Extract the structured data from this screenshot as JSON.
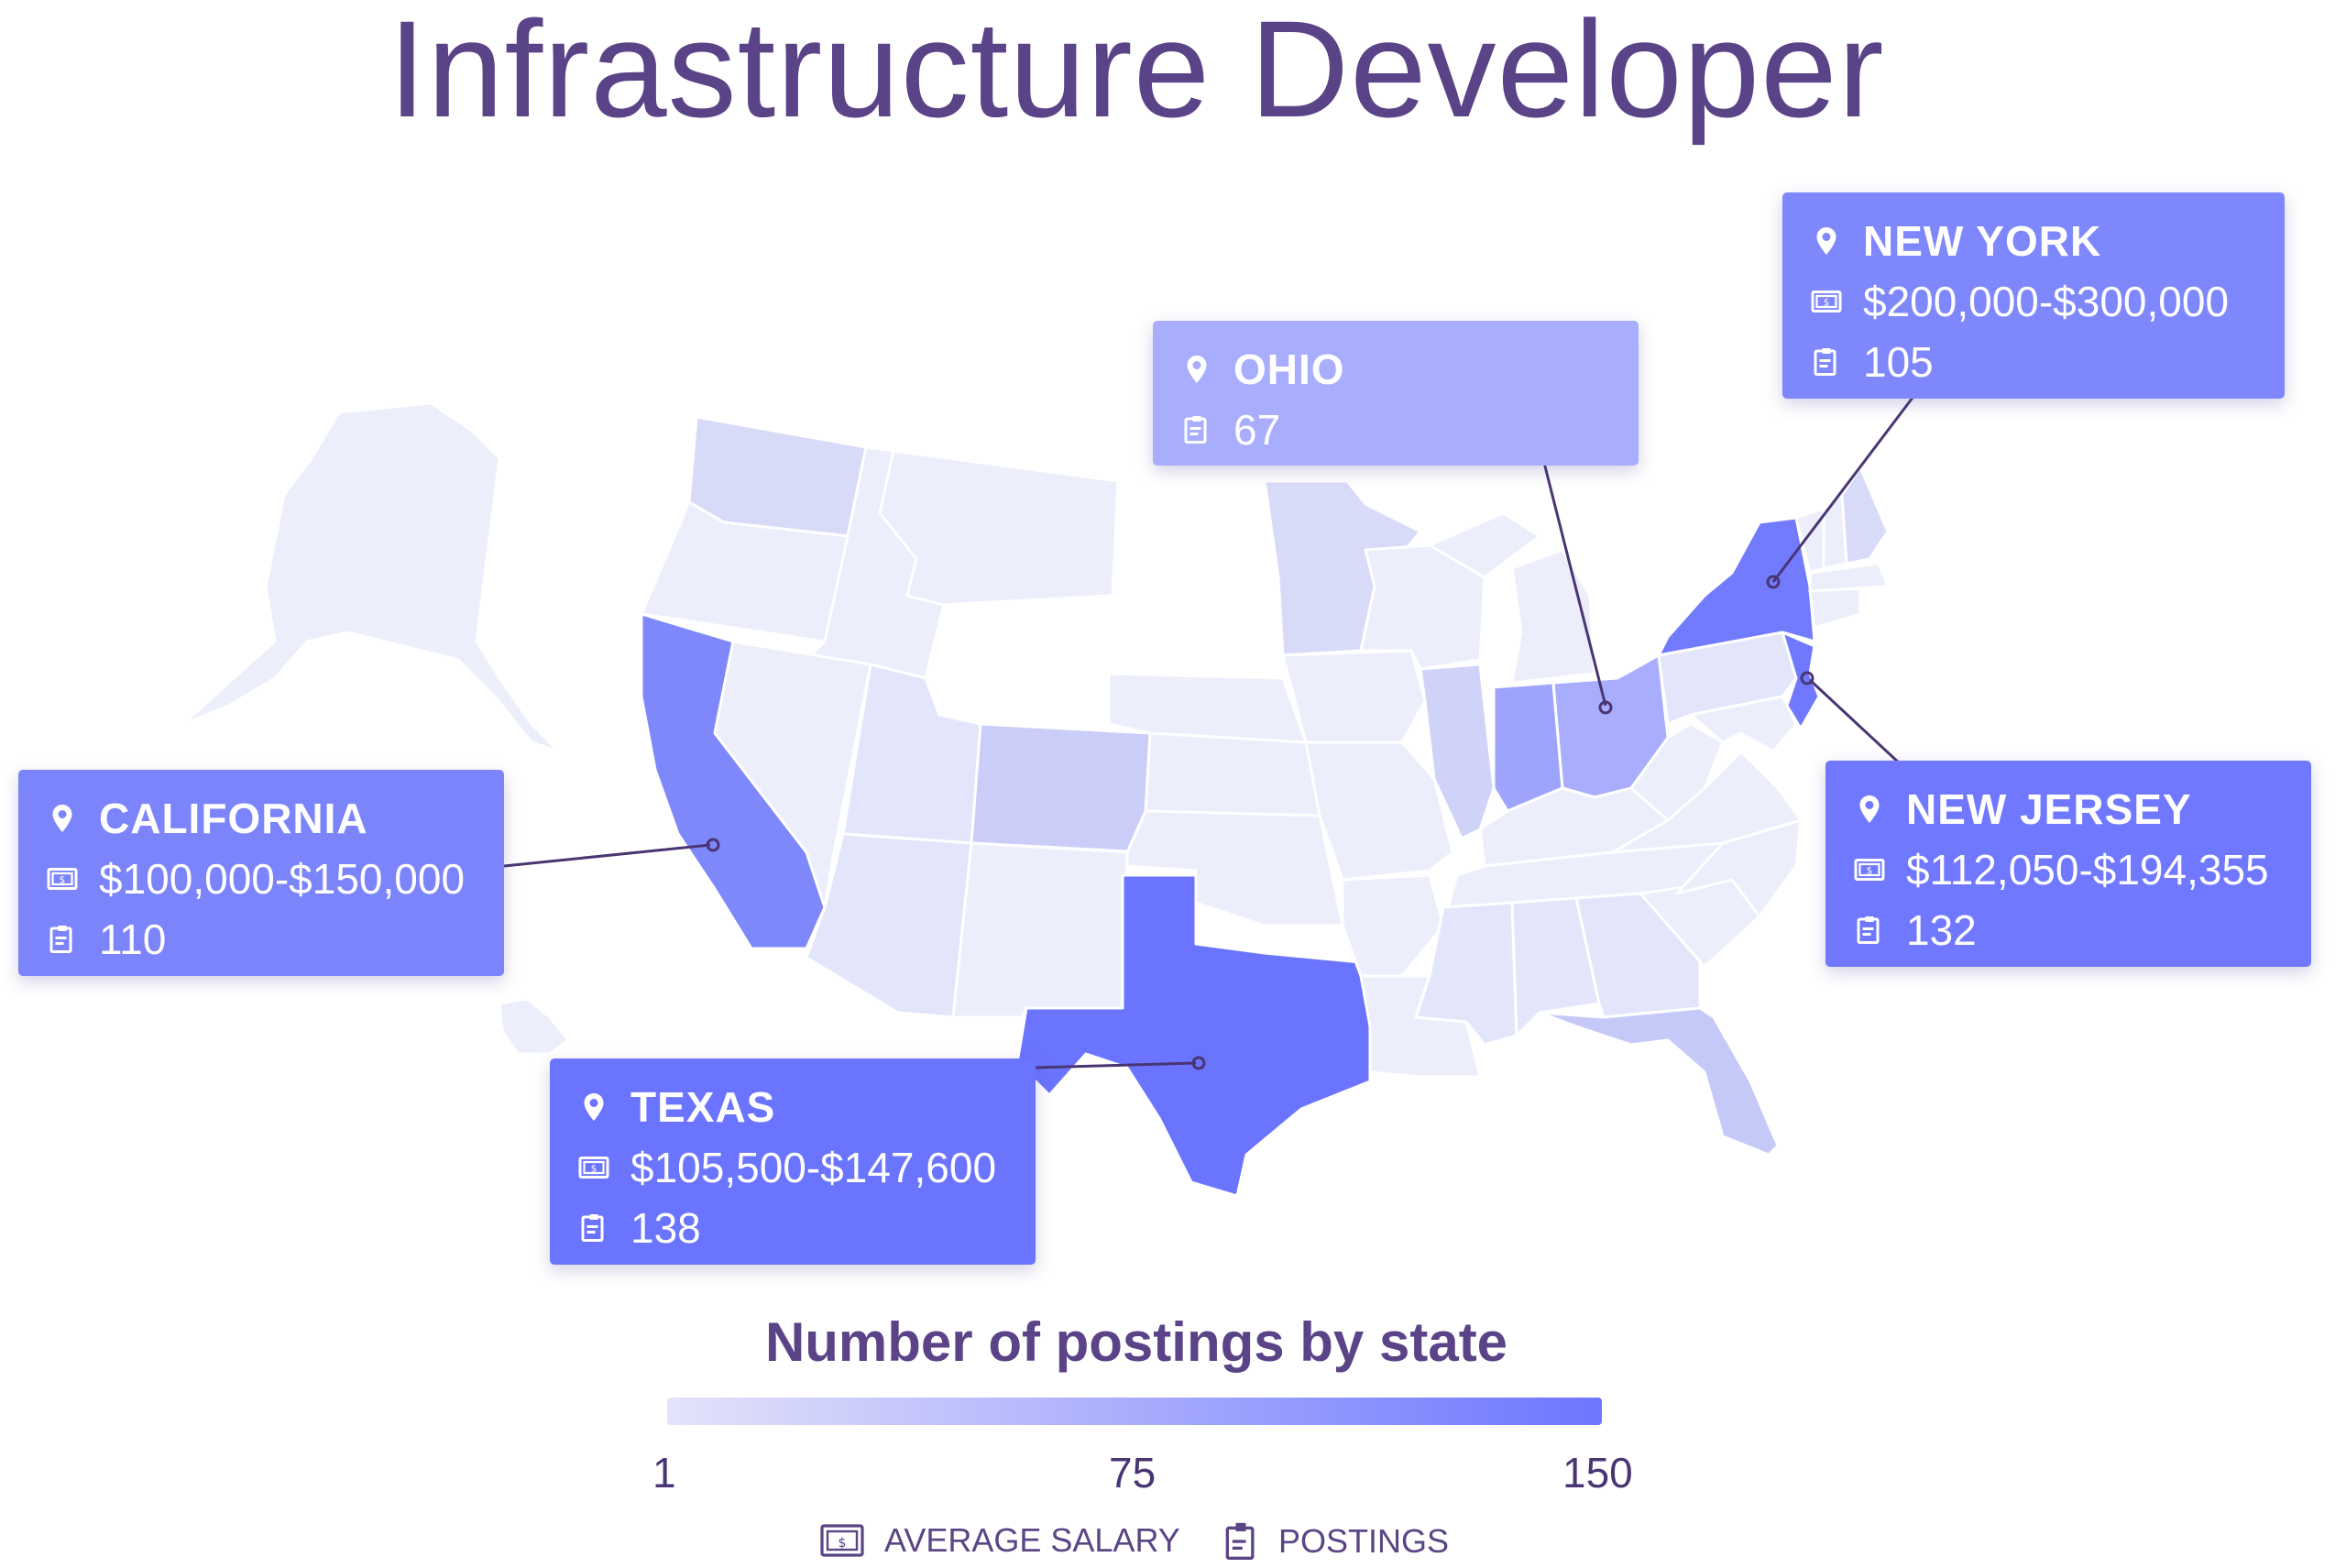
{
  "title": "Infrastructure Developer",
  "legend": {
    "title": "Number of postings by state",
    "ticks": [
      "1",
      "75",
      "150"
    ],
    "min_value": 1,
    "max_value": 150,
    "color_low": "#e4e3fa",
    "color_high": "#6d76ff"
  },
  "key": {
    "salary_label": "AVERAGE SALARY",
    "salary_icon": "salary-bill-icon",
    "postings_label": "POSTINGS",
    "postings_icon": "clipboard-icon"
  },
  "callouts": {
    "new_york": {
      "name": "NEW YORK",
      "salary": "$200,000-$300,000",
      "postings": "105",
      "color": "#7e87fb"
    },
    "ohio": {
      "name": "OHIO",
      "postings": "67",
      "color": "#a8adfd"
    },
    "california": {
      "name": "CALIFORNIA",
      "salary": "$100,000-$150,000",
      "postings": "110",
      "color": "#7b84fb"
    },
    "new_jersey": {
      "name": "NEW JERSEY",
      "salary": "$112,050-$194,355",
      "postings": "132",
      "color": "#6f78fe"
    },
    "texas": {
      "name": "TEXAS",
      "salary": "$105,500-$147,600",
      "postings": "138",
      "color": "#6b74ff"
    }
  },
  "state_colors": {
    "white": "#ffffff",
    "lightest": "#eceefb",
    "light": "#e3e5fa",
    "light2": "#d8dbf8",
    "mid": "#c9cdf8",
    "ca": "#7f88fb",
    "tx": "#6b74ff",
    "ny": "#727bfd",
    "nj": "#6f78fe",
    "oh": "#a8adfd",
    "in": "#9ea4fc",
    "fl": "#c5c9f8",
    "il": "#cfd3f8"
  }
}
